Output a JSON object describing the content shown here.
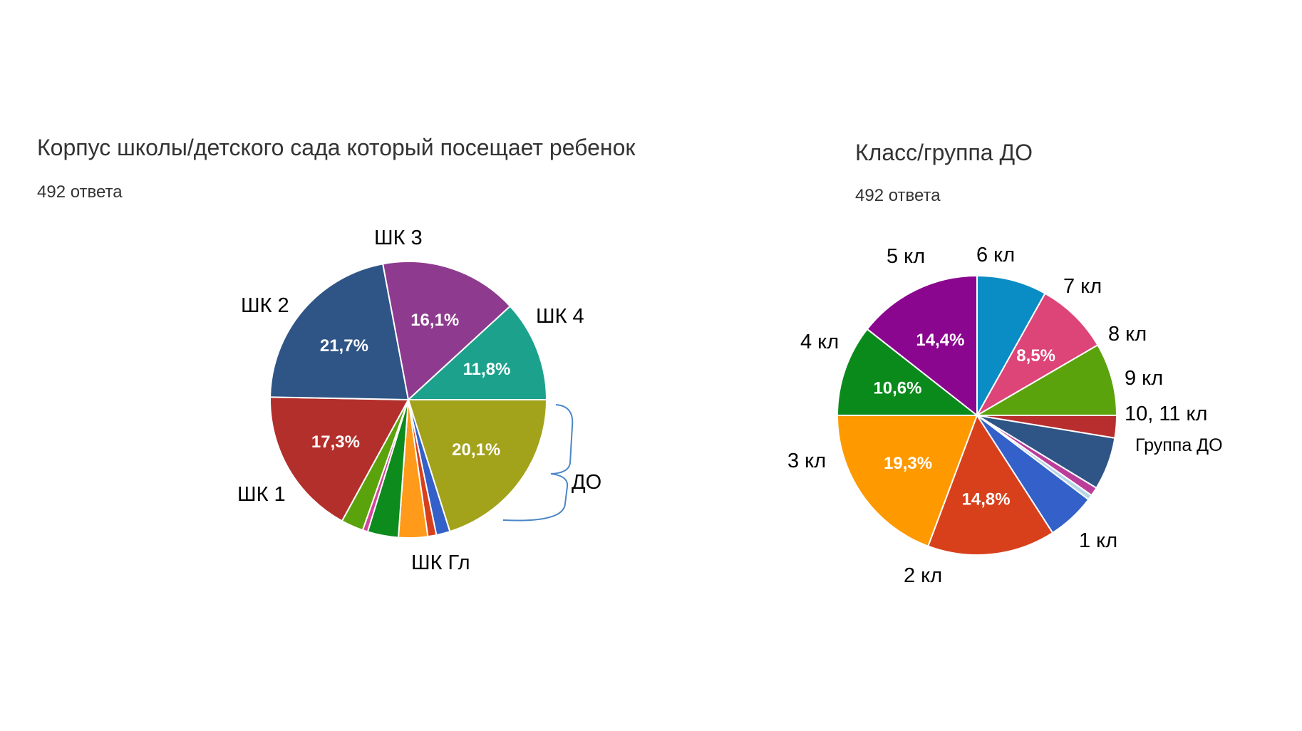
{
  "chart_data": [
    {
      "type": "pie",
      "title": "Корпус школы/детского сада который посещает ребенок",
      "subtitle": "492 ответа",
      "slices": [
        {
          "label": "ШК 4",
          "value": 20.1,
          "color": "#a3a21b",
          "pct_label": "20,1%"
        },
        {
          "label": "",
          "value": 1.6,
          "color": "#3360c9",
          "pct_label": ""
        },
        {
          "label": "",
          "value": 1.0,
          "color": "#d8401c",
          "pct_label": ""
        },
        {
          "label": "",
          "value": 3.4,
          "color": "#ff9a1a",
          "pct_label": ""
        },
        {
          "label": "",
          "value": 3.6,
          "color": "#0d8b1c",
          "pct_label": ""
        },
        {
          "label": "",
          "value": 0.6,
          "color": "#d3449d",
          "pct_label": ""
        },
        {
          "label": "",
          "value": 2.6,
          "color": "#5ba30c",
          "pct_label": ""
        },
        {
          "label": "ШК Гл",
          "value": 17.3,
          "color": "#b32f2b",
          "pct_label": "17,3%"
        },
        {
          "label": "ШК 1",
          "value": 21.7,
          "color": "#2e5586",
          "pct_label": "21,7%"
        },
        {
          "label": "ШК 2",
          "value": 16.1,
          "color": "#8e3b8f",
          "pct_label": "16,1%"
        },
        {
          "label": "ШК 3",
          "value": 11.8,
          "color": "#1ca28c",
          "pct_label": "11,8%"
        }
      ],
      "group_label": "ДО"
    },
    {
      "type": "pie",
      "title": "Класс/группа ДО",
      "subtitle": "492 ответа",
      "slices": [
        {
          "label": "8 кл",
          "value": 2.6,
          "color": "#b82e2e",
          "pct_label": ""
        },
        {
          "label": "9 кл",
          "value": 6.1,
          "color": "#2e5586",
          "pct_label": ""
        },
        {
          "label": "10, 11 кл",
          "value": 1.0,
          "color": "#bb3d9a",
          "pct_label": ""
        },
        {
          "label": "",
          "value": 0.6,
          "color": "#b6d7e7",
          "pct_label": ""
        },
        {
          "label": "Группа ДО",
          "value": 5.6,
          "color": "#3360c9",
          "pct_label": ""
        },
        {
          "label": "1 кл",
          "value": 14.8,
          "color": "#d8401c",
          "pct_label": "14,8%"
        },
        {
          "label": "2 кл",
          "value": 19.3,
          "color": "#ff9900",
          "pct_label": "19,3%"
        },
        {
          "label": "3 кл",
          "value": 10.6,
          "color": "#0b8a1c",
          "pct_label": "10,6%"
        },
        {
          "label": "4 кл",
          "value": 14.4,
          "color": "#8b068f",
          "pct_label": "14,4%"
        },
        {
          "label": "5 кл",
          "value": 8.1,
          "color": "#0a8cc4",
          "pct_label": ""
        },
        {
          "label": "6 кл",
          "value": 8.5,
          "color": "#dd4477",
          "pct_label": "8,5%"
        },
        {
          "label": "7 кл",
          "value": 8.4,
          "color": "#5ba30c",
          "pct_label": ""
        }
      ]
    }
  ]
}
